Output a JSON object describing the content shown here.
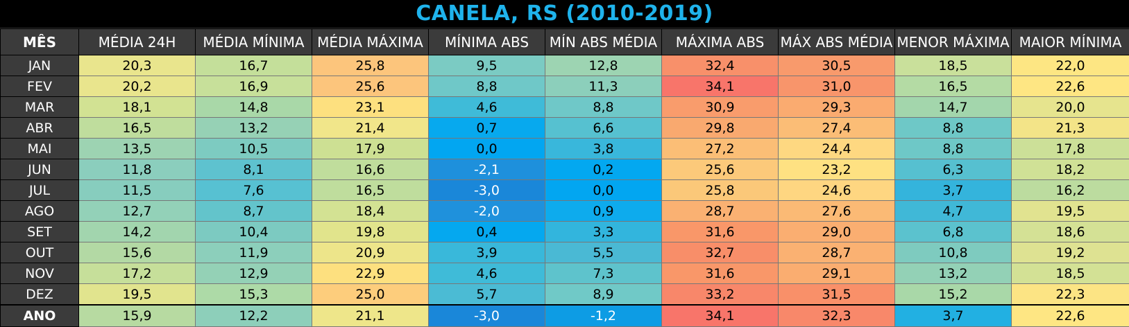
{
  "title": "CANELA, RS (2010-2019)",
  "headers": [
    "MÊS",
    "MÉDIA 24H",
    "MÉDIA MÍNIMA",
    "MÉDIA MÁXIMA",
    "MÍNIMA ABS",
    "MÍN ABS MÉDIA",
    "MÁXIMA ABS",
    "MÁX ABS MÉDIA",
    "MENOR MÁXIMA",
    "MAIOR MÍNIMA"
  ],
  "rows": [
    {
      "label": "JAN",
      "values": [
        "20,3",
        "16,7",
        "25,8",
        "9,5",
        "12,8",
        "32,4",
        "30,5",
        "18,5",
        "22,0"
      ],
      "colors": [
        "#e9e58d",
        "#c4df9a",
        "#fcc57c",
        "#7bcbc3",
        "#9dd4b2",
        "#f8906a",
        "#f89a6c",
        "#c9e09b",
        "#fde683"
      ]
    },
    {
      "label": "FEV",
      "values": [
        "20,2",
        "16,9",
        "25,6",
        "8,8",
        "11,3",
        "34,1",
        "31,0",
        "16,5",
        "22,6"
      ],
      "colors": [
        "#e9e58d",
        "#c7e09a",
        "#fcc57c",
        "#6fc8c8",
        "#8ccfbb",
        "#f8756a",
        "#f8956b",
        "#b4dba4",
        "#fee683"
      ]
    },
    {
      "label": "MAR",
      "values": [
        "18,1",
        "14,8",
        "23,1",
        "4,6",
        "8,8",
        "30,9",
        "29,3",
        "14,7",
        "20,0"
      ],
      "colors": [
        "#d2e293",
        "#a9d8a8",
        "#fde07f",
        "#3fbbd8",
        "#6fc8c8",
        "#f99c6c",
        "#faab70",
        "#a3d6ac",
        "#e6e48e"
      ]
    },
    {
      "label": "ABR",
      "values": [
        "16,5",
        "13,2",
        "21,4",
        "0,7",
        "6,6",
        "29,8",
        "27,4",
        "8,8",
        "21,3"
      ],
      "colors": [
        "#bfdd9d",
        "#96d1b5",
        "#f1e68a",
        "#07a9ee",
        "#56c1d0",
        "#f9a96f",
        "#fbbd76",
        "#6ec8c7",
        "#f3e488"
      ]
    },
    {
      "label": "MAI",
      "values": [
        "13,5",
        "10,5",
        "17,9",
        "0,0",
        "3,8",
        "27,2",
        "24,4",
        "8,8",
        "17,8"
      ],
      "colors": [
        "#9dd3b2",
        "#7dcbc1",
        "#cde093",
        "#02a6f1",
        "#39b7db",
        "#fbbe76",
        "#fed881",
        "#6ec8c7",
        "#cce098"
      ]
    },
    {
      "label": "JUN",
      "values": [
        "11,8",
        "8,1",
        "16,6",
        "-2,1",
        "0,2",
        "25,6",
        "23,2",
        "6,3",
        "18,2"
      ],
      "colors": [
        "#8bcebd",
        "#5ec2cf",
        "#c0dd9c",
        "#1e90dc",
        "#03a8f0",
        "#fcc97a",
        "#fee182",
        "#56c0d0",
        "#d0e196"
      ]
    },
    {
      "label": "JUL",
      "values": [
        "11,5",
        "7,6",
        "16,5",
        "-3,0",
        "0,0",
        "25,8",
        "24,6",
        "3,7",
        "16,2"
      ],
      "colors": [
        "#87cdbe",
        "#57c1d2",
        "#bfdd9d",
        "#1a87d9",
        "#02a6f1",
        "#fbc879",
        "#fed681",
        "#34b4dc",
        "#bcdc9f"
      ]
    },
    {
      "label": "AGO",
      "values": [
        "12,7",
        "8,7",
        "18,4",
        "-2,0",
        "0,9",
        "28,7",
        "27,6",
        "4,7",
        "19,5"
      ],
      "colors": [
        "#93d1b8",
        "#63c4cb",
        "#d3e293",
        "#1f91dc",
        "#0eabed",
        "#fab172",
        "#fbba75",
        "#40b8d7",
        "#e1e390"
      ]
    },
    {
      "label": "SET",
      "values": [
        "14,2",
        "10,4",
        "19,8",
        "0,4",
        "3,3",
        "31,6",
        "29,0",
        "6,8",
        "18,6"
      ],
      "colors": [
        "#a2d5ae",
        "#7ccac1",
        "#e1e48c",
        "#05a8ef",
        "#32b5dd",
        "#f99769",
        "#faae71",
        "#5bc2ce",
        "#d4e195"
      ]
    },
    {
      "label": "OUT",
      "values": [
        "15,6",
        "11,9",
        "20,9",
        "3,9",
        "5,5",
        "32,7",
        "28,7",
        "10,8",
        "19,2"
      ],
      "colors": [
        "#b3d9a4",
        "#8ccfbb",
        "#ede58a",
        "#39b8da",
        "#4ab9d4",
        "#f88e69",
        "#fab172",
        "#7ecbbf",
        "#dee292"
      ]
    },
    {
      "label": "NOV",
      "values": [
        "17,2",
        "12,9",
        "22,9",
        "4,6",
        "7,3",
        "31,6",
        "29,1",
        "13,2",
        "18,5"
      ],
      "colors": [
        "#c6df9a",
        "#94d1b6",
        "#fde07f",
        "#3fbbd8",
        "#5ec3cc",
        "#f99769",
        "#faad70",
        "#93d1b6",
        "#d3e195"
      ]
    },
    {
      "label": "DEZ",
      "values": [
        "19,5",
        "15,3",
        "25,0",
        "5,7",
        "8,9",
        "33,2",
        "31,5",
        "15,2",
        "22,3"
      ],
      "colors": [
        "#e1e48e",
        "#addaa7",
        "#fdcd7c",
        "#4bbbd4",
        "#70c9c7",
        "#f8876a",
        "#f99069",
        "#a9d8a8",
        "#fce484"
      ]
    }
  ],
  "annual": {
    "label": "ANO",
    "values": [
      "15,9",
      "12,2",
      "21,1",
      "-3,0",
      "-1,2",
      "34,1",
      "32,3",
      "3,7",
      "22,6"
    ],
    "colors": [
      "#b7daa1",
      "#8dcfba",
      "#eee68a",
      "#1a87d9",
      "#0d9ce4",
      "#f8756a",
      "#f8886a",
      "#22b0e2",
      "#fee683"
    ]
  }
}
